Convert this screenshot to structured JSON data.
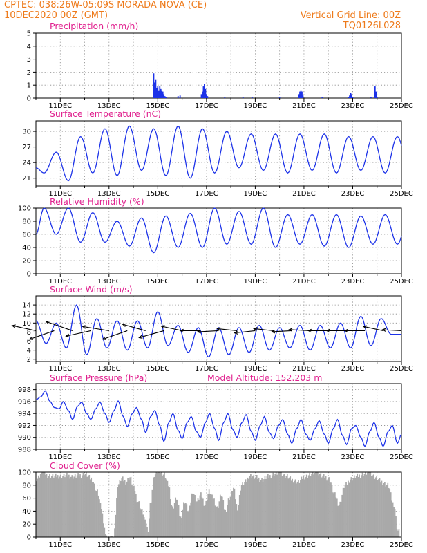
{
  "header": {
    "left_line1": "CPTEC:   038:26W-05:09S   MORADA NOVA (CE)",
    "left_line2": "10DEC2020 00Z (GMT)",
    "right_line1": "Vertical Grid Line: 00Z",
    "right_line2": "TQ0126L028"
  },
  "colors": {
    "header": "#ee7a1a",
    "panel_title": "#e0228f",
    "series": "#1c32e8",
    "cloud": "#a9a9a9",
    "wind_arrow": "#000000"
  },
  "chart_data": [
    {
      "type": "bar",
      "title": "Precipitation (mm/h)",
      "xlim_hours": [
        0,
        360
      ],
      "x_ticks": [
        "11DEC",
        "13DEC",
        "15DEC",
        "17DEC",
        "19DEC",
        "21DEC",
        "23DEC",
        "25DEC"
      ],
      "y_ticks": [
        0,
        1,
        2,
        3,
        4,
        5
      ],
      "ylim": [
        0,
        5
      ],
      "bars": [
        {
          "hour": 116,
          "value": 1.9
        },
        {
          "hour": 117,
          "value": 1.2
        },
        {
          "hour": 118,
          "value": 1.4
        },
        {
          "hour": 119,
          "value": 0.8
        },
        {
          "hour": 120,
          "value": 0.9
        },
        {
          "hour": 121,
          "value": 0.6
        },
        {
          "hour": 122,
          "value": 0.9
        },
        {
          "hour": 123,
          "value": 0.7
        },
        {
          "hour": 124,
          "value": 0.6
        },
        {
          "hour": 125,
          "value": 0.5
        },
        {
          "hour": 126,
          "value": 0.3
        },
        {
          "hour": 127,
          "value": 0.15
        },
        {
          "hour": 128,
          "value": 0.1
        },
        {
          "hour": 140,
          "value": 0.15
        },
        {
          "hour": 142,
          "value": 0.2
        },
        {
          "hour": 163,
          "value": 0.3
        },
        {
          "hour": 164,
          "value": 0.5
        },
        {
          "hour": 165,
          "value": 0.9
        },
        {
          "hour": 166,
          "value": 1.1
        },
        {
          "hour": 167,
          "value": 0.7
        },
        {
          "hour": 168,
          "value": 0.3
        },
        {
          "hour": 169,
          "value": 0.15
        },
        {
          "hour": 186,
          "value": 0.1
        },
        {
          "hour": 204,
          "value": 0.1
        },
        {
          "hour": 213,
          "value": 0.1
        },
        {
          "hour": 240,
          "value": 0.05
        },
        {
          "hour": 259,
          "value": 0.3
        },
        {
          "hour": 260,
          "value": 0.5
        },
        {
          "hour": 261,
          "value": 0.6
        },
        {
          "hour": 262,
          "value": 0.5
        },
        {
          "hour": 263,
          "value": 0.2
        },
        {
          "hour": 282,
          "value": 0.1
        },
        {
          "hour": 308,
          "value": 0.1
        },
        {
          "hour": 309,
          "value": 0.2
        },
        {
          "hour": 310,
          "value": 0.4
        },
        {
          "hour": 311,
          "value": 0.3
        },
        {
          "hour": 312,
          "value": 0.1
        },
        {
          "hour": 330,
          "value": 0.1
        },
        {
          "hour": 334,
          "value": 0.9
        },
        {
          "hour": 335,
          "value": 0.5
        },
        {
          "hour": 336,
          "value": 0.1
        }
      ]
    },
    {
      "type": "line",
      "title": "Surface Temperature (nC)",
      "xlim_hours": [
        0,
        360
      ],
      "x_ticks": [
        "11DEC",
        "13DEC",
        "15DEC",
        "17DEC",
        "19DEC",
        "21DEC",
        "23DEC",
        "25DEC"
      ],
      "y_ticks": [
        21,
        24,
        27,
        30
      ],
      "ylim": [
        19.5,
        32
      ],
      "min_max": [
        [
          22.0,
          26.0
        ],
        [
          20.5,
          29.0
        ],
        [
          22.0,
          30.5
        ],
        [
          21.5,
          31.0
        ],
        [
          22.5,
          30.5
        ],
        [
          21.5,
          31.0
        ],
        [
          21.0,
          30.5
        ],
        [
          22.0,
          30.0
        ],
        [
          23.0,
          29.5
        ],
        [
          22.5,
          29.5
        ],
        [
          22.0,
          29.5
        ],
        [
          22.5,
          29.5
        ],
        [
          22.0,
          29.0
        ],
        [
          22.5,
          29.0
        ],
        [
          22.0,
          29.0
        ],
        [
          22.0,
          30.0
        ],
        [
          22.0,
          26.0
        ]
      ]
    },
    {
      "type": "line",
      "title": "Relative Humidity (%)",
      "xlim_hours": [
        0,
        360
      ],
      "x_ticks": [
        "11DEC",
        "13DEC",
        "15DEC",
        "17DEC",
        "19DEC",
        "21DEC",
        "23DEC",
        "25DEC"
      ],
      "y_ticks": [
        0,
        20,
        40,
        60,
        80,
        100
      ],
      "ylim": [
        0,
        100
      ],
      "min_max": [
        [
          60,
          100
        ],
        [
          48,
          100
        ],
        [
          48,
          93
        ],
        [
          42,
          80
        ],
        [
          32,
          85
        ],
        [
          40,
          88
        ],
        [
          40,
          92
        ],
        [
          45,
          100
        ],
        [
          45,
          95
        ],
        [
          40,
          100
        ],
        [
          45,
          90
        ],
        [
          42,
          90
        ],
        [
          40,
          90
        ],
        [
          45,
          88
        ],
        [
          45,
          90
        ],
        [
          42,
          95
        ],
        [
          40,
          65
        ]
      ]
    },
    {
      "type": "line",
      "title": "Surface Wind (m/s)",
      "xlim_hours": [
        0,
        360
      ],
      "x_ticks": [
        "11DEC",
        "13DEC",
        "15DEC",
        "17DEC",
        "19DEC",
        "21DEC",
        "23DEC",
        "25DEC"
      ],
      "y_ticks": [
        2,
        4,
        6,
        8,
        10,
        12,
        14
      ],
      "ylim": [
        1.5,
        16
      ],
      "min_max": [
        [
          5.5,
          10.5
        ],
        [
          4.5,
          10.0
        ],
        [
          3.0,
          14.0
        ],
        [
          4.5,
          11.0
        ],
        [
          4.0,
          10.5
        ],
        [
          4.5,
          10.5
        ],
        [
          5.0,
          12.5
        ],
        [
          3.5,
          9.5
        ],
        [
          2.5,
          9.0
        ],
        [
          3.0,
          9.0
        ],
        [
          3.5,
          9.0
        ],
        [
          4.0,
          9.5
        ],
        [
          4.5,
          9.0
        ],
        [
          4.0,
          9.5
        ],
        [
          4.5,
          9.5
        ],
        [
          4.5,
          10.0
        ],
        [
          5.0,
          11.5
        ],
        [
          7.5,
          11.0
        ]
      ],
      "wind_vectors": [
        {
          "hour": 0,
          "speed": 9.5,
          "dir_deg": 200
        },
        {
          "hour": 18,
          "speed": 11.0,
          "dir_deg": 150
        },
        {
          "hour": 36,
          "speed": 12.0,
          "dir_deg": 210
        },
        {
          "hour": 54,
          "speed": 10.0,
          "dir_deg": 160
        },
        {
          "hour": 72,
          "speed": 10.5,
          "dir_deg": 195
        },
        {
          "hour": 90,
          "speed": 11.0,
          "dir_deg": 150
        },
        {
          "hour": 108,
          "speed": 9.5,
          "dir_deg": 205
        },
        {
          "hour": 126,
          "speed": 10.5,
          "dir_deg": 155
        },
        {
          "hour": 144,
          "speed": 8.0,
          "dir_deg": 200
        },
        {
          "hour": 162,
          "speed": 7.0,
          "dir_deg": 180
        },
        {
          "hour": 180,
          "speed": 7.5,
          "dir_deg": 175
        },
        {
          "hour": 198,
          "speed": 7.0,
          "dir_deg": 190
        },
        {
          "hour": 216,
          "speed": 7.5,
          "dir_deg": 170
        },
        {
          "hour": 234,
          "speed": 7.0,
          "dir_deg": 190
        },
        {
          "hour": 252,
          "speed": 7.0,
          "dir_deg": 175
        },
        {
          "hour": 270,
          "speed": 7.5,
          "dir_deg": 185
        },
        {
          "hour": 288,
          "speed": 7.0,
          "dir_deg": 180
        },
        {
          "hour": 306,
          "speed": 7.0,
          "dir_deg": 180
        },
        {
          "hour": 324,
          "speed": 7.0,
          "dir_deg": 180
        },
        {
          "hour": 342,
          "speed": 7.5,
          "dir_deg": 200
        },
        {
          "hour": 360,
          "speed": 6.5,
          "dir_deg": 185
        }
      ]
    },
    {
      "type": "line",
      "title": "Surface Pressure (hPa)",
      "annotation": "Model Altitude: 152.203 m",
      "xlim_hours": [
        0,
        360
      ],
      "x_ticks": [
        "11DEC",
        "13DEC",
        "15DEC",
        "17DEC",
        "19DEC",
        "21DEC",
        "23DEC",
        "25DEC"
      ],
      "y_ticks": [
        988,
        990,
        992,
        994,
        996,
        998
      ],
      "ylim": [
        988,
        999
      ],
      "extrema": [
        [
          0,
          996.3
        ],
        [
          5,
          996.8
        ],
        [
          9,
          997.8
        ],
        [
          14,
          996.0
        ],
        [
          18,
          995.0
        ],
        [
          23,
          994.8
        ],
        [
          27,
          996.0
        ],
        [
          32,
          994.5
        ],
        [
          36,
          993.0
        ],
        [
          41,
          995.2
        ],
        [
          45,
          995.9
        ],
        [
          50,
          994.0
        ],
        [
          54,
          993.0
        ],
        [
          59,
          994.8
        ],
        [
          63,
          995.9
        ],
        [
          68,
          994.0
        ],
        [
          72,
          992.5
        ],
        [
          77,
          994.5
        ],
        [
          81,
          996.1
        ],
        [
          86,
          993.5
        ],
        [
          90,
          991.8
        ],
        [
          95,
          994.0
        ],
        [
          99,
          995.0
        ],
        [
          104,
          993.0
        ],
        [
          108,
          990.8
        ],
        [
          113,
          993.5
        ],
        [
          117,
          994.5
        ],
        [
          122,
          992.0
        ],
        [
          126,
          989.3
        ],
        [
          131,
          992.5
        ],
        [
          135,
          994.0
        ],
        [
          140,
          991.2
        ],
        [
          144,
          989.8
        ],
        [
          149,
          992.5
        ],
        [
          153,
          993.5
        ],
        [
          158,
          991.0
        ],
        [
          162,
          990.0
        ],
        [
          167,
          992.5
        ],
        [
          171,
          994.0
        ],
        [
          176,
          991.5
        ],
        [
          180,
          989.5
        ],
        [
          185,
          992.5
        ],
        [
          189,
          994.0
        ],
        [
          194,
          991.3
        ],
        [
          198,
          990.0
        ],
        [
          203,
          992.5
        ],
        [
          207,
          993.8
        ],
        [
          212,
          991.0
        ],
        [
          216,
          989.5
        ],
        [
          221,
          992.0
        ],
        [
          225,
          993.5
        ],
        [
          230,
          990.8
        ],
        [
          234,
          989.8
        ],
        [
          239,
          992.0
        ],
        [
          243,
          993.0
        ],
        [
          248,
          990.5
        ],
        [
          252,
          989.0
        ],
        [
          257,
          991.5
        ],
        [
          261,
          993.0
        ],
        [
          266,
          990.5
        ],
        [
          270,
          989.5
        ],
        [
          275,
          991.5
        ],
        [
          279,
          992.8
        ],
        [
          284,
          990.5
        ],
        [
          288,
          989.0
        ],
        [
          293,
          991.5
        ],
        [
          297,
          993.0
        ],
        [
          302,
          990.3
        ],
        [
          306,
          988.8
        ],
        [
          311,
          991.5
        ],
        [
          315,
          992.0
        ],
        [
          320,
          990.0
        ],
        [
          324,
          988.5
        ],
        [
          329,
          991.0
        ],
        [
          333,
          992.5
        ],
        [
          338,
          990.0
        ],
        [
          342,
          988.5
        ],
        [
          347,
          991.0
        ],
        [
          351,
          992.0
        ],
        [
          356,
          989.0
        ],
        [
          360,
          990.5
        ]
      ]
    },
    {
      "type": "area",
      "title": "Cloud Cover (%)",
      "xlim_hours": [
        0,
        360
      ],
      "x_ticks": [
        "11DEC",
        "13DEC",
        "15DEC",
        "17DEC",
        "19DEC",
        "21DEC",
        "23DEC",
        "25DEC"
      ],
      "y_ticks": [
        0,
        20,
        40,
        60,
        80,
        100
      ],
      "ylim": [
        0,
        100
      ],
      "anchors": [
        [
          0,
          90
        ],
        [
          6,
          100
        ],
        [
          12,
          95
        ],
        [
          18,
          94
        ],
        [
          24,
          94
        ],
        [
          30,
          95
        ],
        [
          36,
          93
        ],
        [
          42,
          95
        ],
        [
          48,
          97
        ],
        [
          54,
          90
        ],
        [
          60,
          70
        ],
        [
          64,
          45
        ],
        [
          66,
          25
        ],
        [
          68,
          5
        ],
        [
          70,
          0
        ],
        [
          72,
          0
        ],
        [
          74,
          2
        ],
        [
          76,
          0
        ],
        [
          78,
          35
        ],
        [
          80,
          80
        ],
        [
          84,
          90
        ],
        [
          88,
          85
        ],
        [
          92,
          92
        ],
        [
          96,
          75
        ],
        [
          100,
          55
        ],
        [
          104,
          40
        ],
        [
          108,
          20
        ],
        [
          110,
          8
        ],
        [
          112,
          50
        ],
        [
          116,
          95
        ],
        [
          120,
          100
        ],
        [
          126,
          96
        ],
        [
          130,
          80
        ],
        [
          134,
          45
        ],
        [
          138,
          60
        ],
        [
          142,
          30
        ],
        [
          146,
          55
        ],
        [
          150,
          40
        ],
        [
          154,
          70
        ],
        [
          158,
          55
        ],
        [
          162,
          65
        ],
        [
          166,
          50
        ],
        [
          170,
          70
        ],
        [
          174,
          60
        ],
        [
          178,
          45
        ],
        [
          182,
          65
        ],
        [
          186,
          40
        ],
        [
          190,
          60
        ],
        [
          194,
          75
        ],
        [
          198,
          45
        ],
        [
          202,
          80
        ],
        [
          206,
          85
        ],
        [
          210,
          95
        ],
        [
          216,
          92
        ],
        [
          222,
          88
        ],
        [
          228,
          93
        ],
        [
          234,
          97
        ],
        [
          240,
          100
        ],
        [
          246,
          94
        ],
        [
          252,
          88
        ],
        [
          258,
          85
        ],
        [
          264,
          93
        ],
        [
          270,
          96
        ],
        [
          276,
          100
        ],
        [
          282,
          94
        ],
        [
          288,
          90
        ],
        [
          294,
          65
        ],
        [
          298,
          50
        ],
        [
          304,
          80
        ],
        [
          310,
          90
        ],
        [
          316,
          94
        ],
        [
          322,
          97
        ],
        [
          328,
          100
        ],
        [
          334,
          92
        ],
        [
          340,
          85
        ],
        [
          346,
          80
        ],
        [
          352,
          50
        ],
        [
          356,
          10
        ],
        [
          360,
          0
        ]
      ]
    }
  ]
}
